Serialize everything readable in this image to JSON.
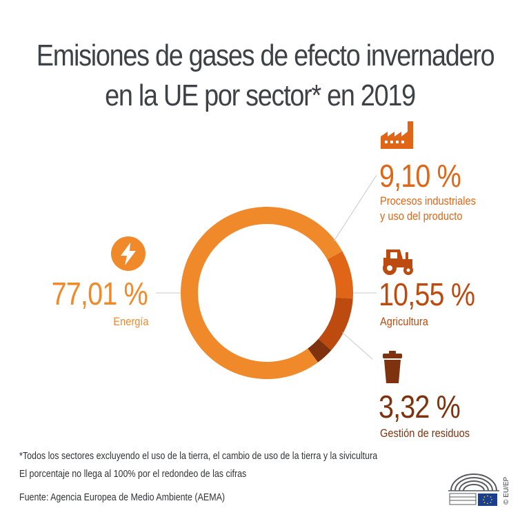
{
  "title": {
    "line1": "Emisiones de gases de efecto invernadero",
    "line2": "en la UE por sector* en 2019"
  },
  "colors": {
    "energia": "#F0892A",
    "procesos": "#E06516",
    "agricultura": "#BD4A0E",
    "residuos": "#7E320D",
    "text_dark": "#3d4246"
  },
  "chart_data": {
    "type": "pie",
    "variant": "donut",
    "title": "Emisiones de gases de efecto invernadero en la UE por sector* en 2019",
    "unit": "%",
    "slices": [
      {
        "name": "Energía",
        "value": 77.01,
        "label": "77,01 %",
        "color": "#F0892A",
        "icon": "lightning-bolt-icon"
      },
      {
        "name": "Procesos industriales y uso del producto",
        "value": 9.1,
        "label": "9,10 %",
        "color": "#E06516",
        "icon": "factory-icon"
      },
      {
        "name": "Agricultura",
        "value": 10.55,
        "label": "10,55 %",
        "color": "#BD4A0E",
        "icon": "tractor-icon"
      },
      {
        "name": "Gestión de residuos",
        "value": 3.32,
        "label": "3,32 %",
        "color": "#7E320D",
        "icon": "trash-bin-icon"
      }
    ]
  },
  "sectors": {
    "energia": {
      "pct": "77,01 %",
      "label": "Energía"
    },
    "procesos": {
      "pct": "9,10 %",
      "label_line1": "Procesos industriales",
      "label_line2": "y uso del producto"
    },
    "agricultura": {
      "pct": "10,55 %",
      "label": "Agricultura"
    },
    "residuos": {
      "pct": "3,32 %",
      "label": "Gestión de residuos"
    }
  },
  "notes": {
    "footnote": "*Todos los sectores excluyendo el uso de la tierra, el cambio de uso de la tierra y la sivicultura",
    "rounding": "El porcentaje no llega al 100% por el redondeo de las cifras",
    "source": "Fuente:  Agencia Europea de Medio Ambiente (AEMA)"
  },
  "credit": "© EU/EP"
}
